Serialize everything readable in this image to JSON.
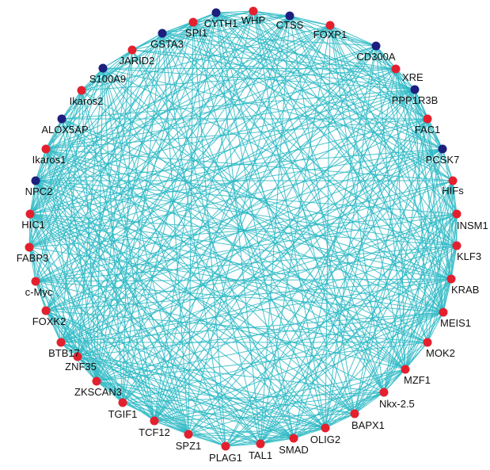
{
  "network": {
    "colors": {
      "edge": "#2bb8c4",
      "red_node": "#e4202e",
      "blue_node": "#1c1f7e",
      "label": "#111111"
    },
    "nodes": [
      {
        "id": "WHP",
        "label": "WHP",
        "color": "red"
      },
      {
        "id": "CTSS",
        "label": "CTSS",
        "color": "blue"
      },
      {
        "id": "FOXP1",
        "label": "FOXP1",
        "color": "red"
      },
      {
        "id": "CD300A",
        "label": "CD300A",
        "color": "blue"
      },
      {
        "id": "XRE",
        "label": "XRE",
        "color": "red"
      },
      {
        "id": "PPP1R3B",
        "label": "PPP1R3B",
        "color": "blue"
      },
      {
        "id": "FAC1",
        "label": "FAC1",
        "color": "red"
      },
      {
        "id": "PCSK7",
        "label": "PCSK7",
        "color": "blue"
      },
      {
        "id": "HIFs",
        "label": "HIFs",
        "color": "red"
      },
      {
        "id": "INSM1",
        "label": "INSM1",
        "color": "red"
      },
      {
        "id": "KLF3",
        "label": "KLF3",
        "color": "red"
      },
      {
        "id": "KRAB",
        "label": "KRAB",
        "color": "red"
      },
      {
        "id": "MEIS1",
        "label": "MEIS1",
        "color": "red"
      },
      {
        "id": "MOK2",
        "label": "MOK2",
        "color": "red"
      },
      {
        "id": "MZF1",
        "label": "MZF1",
        "color": "red"
      },
      {
        "id": "Nkx-2.5",
        "label": "Nkx-2.5",
        "color": "red"
      },
      {
        "id": "BAPX1",
        "label": "BAPX1",
        "color": "red"
      },
      {
        "id": "OLIG2",
        "label": "OLIG2",
        "color": "red"
      },
      {
        "id": "SMAD",
        "label": "SMAD",
        "color": "red"
      },
      {
        "id": "TAL1",
        "label": "TAL1",
        "color": "red"
      },
      {
        "id": "PLAG1",
        "label": "PLAG1",
        "color": "red"
      },
      {
        "id": "SPZ1",
        "label": "SPZ1",
        "color": "red"
      },
      {
        "id": "TCF12",
        "label": "TCF12",
        "color": "red"
      },
      {
        "id": "TGIF1",
        "label": "TGIF1",
        "color": "red"
      },
      {
        "id": "ZKSCAN3",
        "label": "ZKSCAN3",
        "color": "red"
      },
      {
        "id": "ZNF35",
        "label": "ZNF35",
        "color": "red"
      },
      {
        "id": "BTB17",
        "label": "BTB17",
        "color": "red"
      },
      {
        "id": "FOXK2",
        "label": "FOXK2",
        "color": "red"
      },
      {
        "id": "c-Myc",
        "label": "c-Myc",
        "color": "red"
      },
      {
        "id": "FABP3",
        "label": "FABP3",
        "color": "red"
      },
      {
        "id": "HIC1",
        "label": "HIC1",
        "color": "red"
      },
      {
        "id": "NPC2",
        "label": "NPC2",
        "color": "blue"
      },
      {
        "id": "Ikaros1",
        "label": "Ikaros1",
        "color": "red"
      },
      {
        "id": "ALOX5AP",
        "label": "ALOX5AP",
        "color": "blue"
      },
      {
        "id": "Ikaros2",
        "label": "Ikaros2",
        "color": "red"
      },
      {
        "id": "S100A9",
        "label": "S100A9",
        "color": "blue"
      },
      {
        "id": "JARID2",
        "label": "JARID2",
        "color": "red"
      },
      {
        "id": "GSTA3",
        "label": "GSTA3",
        "color": "blue"
      },
      {
        "id": "SPI1",
        "label": "SPI1",
        "color": "red"
      },
      {
        "id": "CYTH1",
        "label": "CYTH1",
        "color": "blue"
      }
    ]
  }
}
